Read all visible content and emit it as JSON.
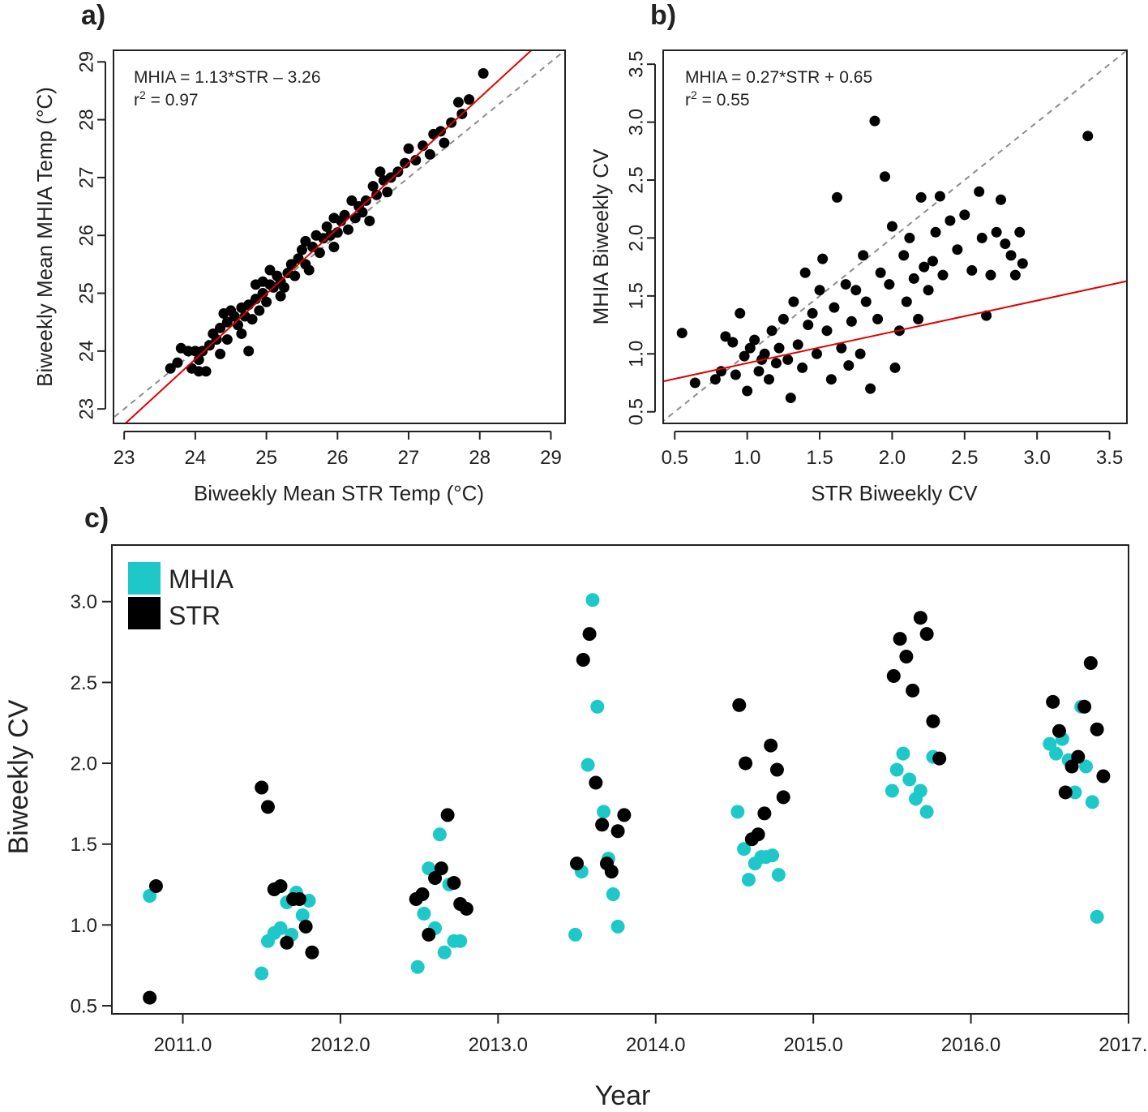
{
  "colors": {
    "mhia": "#1fc8c8",
    "str": "#000000",
    "fit": "#e00000",
    "one_to_one": "#8c8c8c"
  },
  "chart_data": [
    {
      "id": "a",
      "type": "scatter",
      "panel_label": "a)",
      "xlabel": "Biweekly Mean STR Temp (°C)",
      "ylabel": "Biweekly Mean MHIA Temp (°C)",
      "xlim": [
        22.85,
        29.2
      ],
      "ylim": [
        22.75,
        29.2
      ],
      "x_ticks": [
        23,
        24,
        25,
        26,
        27,
        28,
        29
      ],
      "y_ticks": [
        23,
        24,
        25,
        26,
        27,
        28,
        29
      ],
      "equation": "MHIA = 1.13*STR – 3.26",
      "r2_prefix": "r",
      "r2_sup": "2",
      "r2_value": " = 0.97",
      "fit": {
        "slope": 1.13,
        "intercept": -3.26
      },
      "one_to_one": true,
      "points": [
        [
          23.65,
          23.7
        ],
        [
          23.75,
          23.8
        ],
        [
          23.8,
          24.05
        ],
        [
          23.9,
          24.0
        ],
        [
          23.95,
          23.7
        ],
        [
          24.0,
          24.0
        ],
        [
          24.05,
          23.65
        ],
        [
          24.05,
          23.85
        ],
        [
          24.1,
          24.0
        ],
        [
          24.15,
          23.65
        ],
        [
          24.2,
          24.1
        ],
        [
          24.25,
          24.3
        ],
        [
          24.3,
          24.2
        ],
        [
          24.35,
          23.95
        ],
        [
          24.35,
          24.4
        ],
        [
          24.4,
          24.65
        ],
        [
          24.45,
          24.2
        ],
        [
          24.45,
          24.5
        ],
        [
          24.5,
          24.7
        ],
        [
          24.55,
          24.6
        ],
        [
          24.6,
          24.45
        ],
        [
          24.65,
          24.3
        ],
        [
          24.65,
          24.75
        ],
        [
          24.7,
          24.6
        ],
        [
          24.75,
          24.0
        ],
        [
          24.75,
          24.8
        ],
        [
          24.8,
          24.55
        ],
        [
          24.85,
          24.9
        ],
        [
          24.85,
          25.15
        ],
        [
          24.9,
          24.7
        ],
        [
          24.95,
          25.0
        ],
        [
          24.95,
          25.2
        ],
        [
          25.0,
          24.85
        ],
        [
          25.05,
          25.15
        ],
        [
          25.05,
          25.4
        ],
        [
          25.1,
          25.1
        ],
        [
          25.15,
          25.3
        ],
        [
          25.2,
          24.95
        ],
        [
          25.2,
          25.2
        ],
        [
          25.25,
          25.1
        ],
        [
          25.3,
          25.35
        ],
        [
          25.35,
          25.5
        ],
        [
          25.4,
          25.3
        ],
        [
          25.45,
          25.6
        ],
        [
          25.5,
          25.75
        ],
        [
          25.55,
          25.5
        ],
        [
          25.55,
          25.9
        ],
        [
          25.6,
          25.4
        ],
        [
          25.65,
          25.8
        ],
        [
          25.7,
          26.0
        ],
        [
          25.75,
          25.7
        ],
        [
          25.8,
          25.95
        ],
        [
          25.85,
          26.15
        ],
        [
          25.9,
          26.0
        ],
        [
          25.95,
          25.8
        ],
        [
          25.95,
          26.3
        ],
        [
          26.0,
          26.05
        ],
        [
          26.05,
          26.25
        ],
        [
          26.1,
          26.35
        ],
        [
          26.15,
          26.1
        ],
        [
          26.2,
          26.6
        ],
        [
          26.25,
          26.3
        ],
        [
          26.3,
          26.5
        ],
        [
          26.35,
          26.4
        ],
        [
          26.4,
          26.6
        ],
        [
          26.45,
          26.25
        ],
        [
          26.5,
          26.85
        ],
        [
          26.55,
          26.7
        ],
        [
          26.6,
          27.1
        ],
        [
          26.65,
          26.95
        ],
        [
          26.7,
          26.75
        ],
        [
          26.75,
          27.0
        ],
        [
          26.85,
          27.1
        ],
        [
          26.95,
          27.25
        ],
        [
          27.0,
          27.5
        ],
        [
          27.1,
          27.3
        ],
        [
          27.2,
          27.55
        ],
        [
          27.3,
          27.4
        ],
        [
          27.35,
          27.75
        ],
        [
          27.45,
          27.8
        ],
        [
          27.5,
          27.6
        ],
        [
          27.6,
          27.95
        ],
        [
          27.7,
          28.3
        ],
        [
          27.75,
          28.1
        ],
        [
          27.85,
          28.35
        ],
        [
          28.05,
          28.8
        ]
      ]
    },
    {
      "id": "b",
      "type": "scatter",
      "panel_label": "b)",
      "xlabel": "STR Biweekly CV",
      "ylabel": "MHIA Biweekly CV",
      "xlim": [
        0.42,
        3.62
      ],
      "ylim": [
        0.4,
        3.62
      ],
      "x_ticks": [
        0.5,
        1.0,
        1.5,
        2.0,
        2.5,
        3.0,
        3.5
      ],
      "y_ticks": [
        0.5,
        1.0,
        1.5,
        2.0,
        2.5,
        3.0,
        3.5
      ],
      "tick_format": 1,
      "equation": "MHIA = 0.27*STR + 0.65",
      "r2_prefix": "r",
      "r2_sup": "2",
      "r2_value": " = 0.55",
      "fit": {
        "slope": 0.27,
        "intercept": 0.65
      },
      "one_to_one": true,
      "points": [
        [
          0.55,
          1.18
        ],
        [
          0.64,
          0.75
        ],
        [
          0.78,
          0.78
        ],
        [
          0.82,
          0.85
        ],
        [
          0.85,
          1.15
        ],
        [
          0.9,
          1.1
        ],
        [
          0.92,
          0.82
        ],
        [
          0.95,
          1.35
        ],
        [
          0.98,
          0.98
        ],
        [
          1.0,
          0.68
        ],
        [
          1.02,
          1.05
        ],
        [
          1.05,
          1.12
        ],
        [
          1.08,
          0.85
        ],
        [
          1.1,
          0.95
        ],
        [
          1.12,
          1.0
        ],
        [
          1.15,
          0.78
        ],
        [
          1.17,
          1.2
        ],
        [
          1.2,
          0.92
        ],
        [
          1.22,
          1.05
        ],
        [
          1.25,
          1.3
        ],
        [
          1.28,
          0.95
        ],
        [
          1.3,
          0.62
        ],
        [
          1.32,
          1.45
        ],
        [
          1.35,
          1.08
        ],
        [
          1.38,
          0.88
        ],
        [
          1.4,
          1.7
        ],
        [
          1.42,
          1.25
        ],
        [
          1.45,
          1.35
        ],
        [
          1.48,
          1.0
        ],
        [
          1.5,
          1.55
        ],
        [
          1.52,
          1.82
        ],
        [
          1.55,
          1.2
        ],
        [
          1.58,
          0.78
        ],
        [
          1.6,
          1.4
        ],
        [
          1.62,
          2.35
        ],
        [
          1.65,
          1.05
        ],
        [
          1.68,
          1.6
        ],
        [
          1.7,
          0.9
        ],
        [
          1.72,
          1.28
        ],
        [
          1.75,
          1.55
        ],
        [
          1.78,
          1.0
        ],
        [
          1.8,
          1.85
        ],
        [
          1.82,
          1.45
        ],
        [
          1.85,
          0.7
        ],
        [
          1.88,
          3.01
        ],
        [
          1.9,
          1.3
        ],
        [
          1.92,
          1.7
        ],
        [
          1.95,
          2.53
        ],
        [
          1.98,
          1.6
        ],
        [
          2.0,
          2.1
        ],
        [
          2.02,
          0.88
        ],
        [
          2.05,
          1.2
        ],
        [
          2.08,
          1.85
        ],
        [
          2.1,
          1.45
        ],
        [
          2.12,
          2.0
        ],
        [
          2.15,
          1.65
        ],
        [
          2.18,
          1.3
        ],
        [
          2.2,
          2.35
        ],
        [
          2.22,
          1.75
        ],
        [
          2.25,
          1.55
        ],
        [
          2.28,
          1.8
        ],
        [
          2.3,
          2.05
        ],
        [
          2.33,
          2.36
        ],
        [
          2.35,
          1.68
        ],
        [
          2.4,
          2.15
        ],
        [
          2.45,
          1.9
        ],
        [
          2.5,
          2.2
        ],
        [
          2.55,
          1.72
        ],
        [
          2.6,
          2.4
        ],
        [
          2.62,
          2.0
        ],
        [
          2.65,
          1.33
        ],
        [
          2.68,
          1.68
        ],
        [
          2.72,
          2.05
        ],
        [
          2.75,
          2.33
        ],
        [
          2.78,
          1.95
        ],
        [
          2.82,
          1.85
        ],
        [
          2.85,
          1.68
        ],
        [
          2.88,
          2.05
        ],
        [
          2.9,
          1.78
        ],
        [
          3.35,
          2.88
        ]
      ]
    },
    {
      "id": "c",
      "type": "scatter",
      "panel_label": "c)",
      "xlabel": "Year",
      "ylabel": "Biweekly CV",
      "xlim": [
        2010.55,
        2017.0
      ],
      "ylim": [
        0.45,
        3.35
      ],
      "x_ticks": [
        2011,
        2012,
        2013,
        2014,
        2015,
        2016,
        2017
      ],
      "y_ticks": [
        0.5,
        1.0,
        1.5,
        2.0,
        2.5,
        3.0
      ],
      "tick_format": 1,
      "legend": {
        "position": "top-left",
        "entries": [
          "MHIA",
          "STR"
        ]
      },
      "series": [
        {
          "name": "MHIA",
          "points": [
            [
              2010.79,
              1.18
            ],
            [
              2011.5,
              0.7
            ],
            [
              2011.54,
              0.9
            ],
            [
              2011.58,
              0.95
            ],
            [
              2011.62,
              0.98
            ],
            [
              2011.66,
              1.14
            ],
            [
              2011.69,
              0.94
            ],
            [
              2011.72,
              1.2
            ],
            [
              2011.76,
              1.06
            ],
            [
              2011.8,
              1.15
            ],
            [
              2012.49,
              0.74
            ],
            [
              2012.53,
              1.07
            ],
            [
              2012.56,
              1.35
            ],
            [
              2012.6,
              0.98
            ],
            [
              2012.63,
              1.56
            ],
            [
              2012.66,
              0.83
            ],
            [
              2012.69,
              1.25
            ],
            [
              2012.72,
              0.9
            ],
            [
              2012.76,
              0.9
            ],
            [
              2013.49,
              0.94
            ],
            [
              2013.53,
              1.33
            ],
            [
              2013.57,
              1.99
            ],
            [
              2013.6,
              3.01
            ],
            [
              2013.63,
              2.35
            ],
            [
              2013.67,
              1.7
            ],
            [
              2013.7,
              1.41
            ],
            [
              2013.73,
              1.19
            ],
            [
              2013.76,
              0.99
            ],
            [
              2014.52,
              1.7
            ],
            [
              2014.56,
              1.47
            ],
            [
              2014.59,
              1.28
            ],
            [
              2014.63,
              1.38
            ],
            [
              2014.67,
              1.42
            ],
            [
              2014.7,
              1.42
            ],
            [
              2014.74,
              1.43
            ],
            [
              2014.78,
              1.31
            ],
            [
              2015.5,
              1.83
            ],
            [
              2015.53,
              1.96
            ],
            [
              2015.57,
              2.06
            ],
            [
              2015.61,
              1.9
            ],
            [
              2015.65,
              1.78
            ],
            [
              2015.68,
              1.83
            ],
            [
              2015.72,
              1.7
            ],
            [
              2015.76,
              2.04
            ],
            [
              2016.5,
              2.12
            ],
            [
              2016.54,
              2.06
            ],
            [
              2016.58,
              2.15
            ],
            [
              2016.62,
              2.02
            ],
            [
              2016.66,
              1.82
            ],
            [
              2016.7,
              2.35
            ],
            [
              2016.73,
              1.98
            ],
            [
              2016.77,
              1.76
            ],
            [
              2016.8,
              1.05
            ]
          ]
        },
        {
          "name": "STR",
          "points": [
            [
              2010.79,
              0.55
            ],
            [
              2010.83,
              1.24
            ],
            [
              2011.5,
              1.85
            ],
            [
              2011.54,
              1.73
            ],
            [
              2011.58,
              1.22
            ],
            [
              2011.62,
              1.24
            ],
            [
              2011.66,
              0.89
            ],
            [
              2011.7,
              1.16
            ],
            [
              2011.74,
              1.16
            ],
            [
              2011.78,
              0.99
            ],
            [
              2011.82,
              0.83
            ],
            [
              2012.48,
              1.16
            ],
            [
              2012.52,
              1.19
            ],
            [
              2012.56,
              0.94
            ],
            [
              2012.6,
              1.29
            ],
            [
              2012.64,
              1.35
            ],
            [
              2012.68,
              1.68
            ],
            [
              2012.72,
              1.26
            ],
            [
              2012.76,
              1.13
            ],
            [
              2012.8,
              1.1
            ],
            [
              2013.5,
              1.38
            ],
            [
              2013.54,
              2.64
            ],
            [
              2013.58,
              2.8
            ],
            [
              2013.62,
              1.88
            ],
            [
              2013.66,
              1.62
            ],
            [
              2013.69,
              1.38
            ],
            [
              2013.72,
              1.33
            ],
            [
              2013.76,
              1.58
            ],
            [
              2013.8,
              1.68
            ],
            [
              2014.53,
              2.36
            ],
            [
              2014.57,
              2.0
            ],
            [
              2014.61,
              1.53
            ],
            [
              2014.65,
              1.56
            ],
            [
              2014.69,
              1.69
            ],
            [
              2014.73,
              2.11
            ],
            [
              2014.77,
              1.96
            ],
            [
              2014.81,
              1.79
            ],
            [
              2015.51,
              2.54
            ],
            [
              2015.55,
              2.77
            ],
            [
              2015.59,
              2.66
            ],
            [
              2015.63,
              2.45
            ],
            [
              2015.68,
              2.9
            ],
            [
              2015.72,
              2.8
            ],
            [
              2015.76,
              2.26
            ],
            [
              2015.8,
              2.03
            ],
            [
              2016.52,
              2.38
            ],
            [
              2016.56,
              2.2
            ],
            [
              2016.6,
              1.82
            ],
            [
              2016.64,
              1.98
            ],
            [
              2016.68,
              2.04
            ],
            [
              2016.72,
              2.35
            ],
            [
              2016.76,
              2.62
            ],
            [
              2016.8,
              2.21
            ],
            [
              2016.84,
              1.92
            ]
          ]
        }
      ]
    }
  ]
}
